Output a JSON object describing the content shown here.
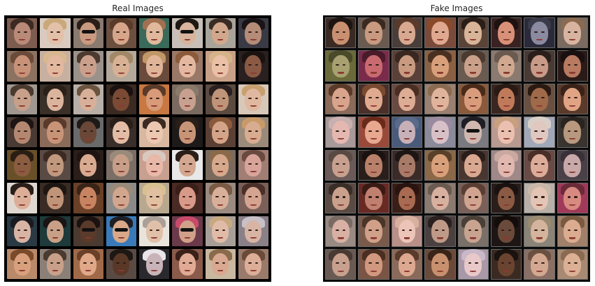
{
  "titles": {
    "real": "Real Images",
    "fake": "Fake Images"
  },
  "colors": {
    "background": "#ffffff",
    "grid_border_real": "#000000",
    "grid_border_fake": "#0a0a0a",
    "title_text": "#262626"
  },
  "real_tiles": [
    {
      "bg": "#7d5c50",
      "skin": "#b98a78",
      "hair": "#3a2a22"
    },
    {
      "bg": "#d9cbbf",
      "skin": "#e3c0a8",
      "hair": "#c9a87a"
    },
    {
      "bg": "#8a7a70",
      "skin": "#c99a80",
      "hair": "#2a1e18",
      "shades": true
    },
    {
      "bg": "#6b5040",
      "skin": "#d6a58a",
      "hair": "#5a3a28"
    },
    {
      "bg": "#3a6a5a",
      "skin": "#e0b89c",
      "hair": "#a07050"
    },
    {
      "bg": "#c8c0b8",
      "skin": "#d8b49c",
      "hair": "#1e1814",
      "shades": true
    },
    {
      "bg": "#a8a49a",
      "skin": "#d2a88c",
      "hair": "#3a2c24"
    },
    {
      "bg": "#3a3a44",
      "skin": "#b48c78",
      "hair": "#1a1416"
    },
    {
      "bg": "#8c7260",
      "skin": "#c89278",
      "hair": "#6a4a38"
    },
    {
      "bg": "#c8b0a0",
      "skin": "#e2b89e",
      "hair": "#d8b890"
    },
    {
      "bg": "#9a928a",
      "skin": "#caa08c",
      "hair": "#4a3a30"
    },
    {
      "bg": "#b4a89a",
      "skin": "#d8b094",
      "hair": "#a08868"
    },
    {
      "bg": "#6a4a3a",
      "skin": "#e0b498",
      "hair": "#c09868"
    },
    {
      "bg": "#9a7868",
      "skin": "#e4b8a0",
      "hair": "#8a5a3a"
    },
    {
      "bg": "#c8a088",
      "skin": "#eac0a6",
      "hair": "#d4b488"
    },
    {
      "bg": "#2a2020",
      "skin": "#8a5a44",
      "hair": "#1a1210"
    },
    {
      "bg": "#a09890",
      "skin": "#c8a08a",
      "hair": "#4a3a30"
    },
    {
      "bg": "#3a3028",
      "skin": "#dab49c",
      "hair": "#2a2018"
    },
    {
      "bg": "#b8b0a8",
      "skin": "#d8b09a",
      "hair": "#6a5440"
    },
    {
      "bg": "#3a2a22",
      "skin": "#7a4a34",
      "hair": "#1a1210"
    },
    {
      "bg": "#c87840",
      "skin": "#d89a78",
      "hair": "#5a3a28"
    },
    {
      "bg": "#7a6a60",
      "skin": "#c8a090",
      "hair": "#8a7a6a"
    },
    {
      "bg": "#5a4a40",
      "skin": "#c09478",
      "hair": "#2a2020"
    },
    {
      "bg": "#d8c8b8",
      "skin": "#e0b8a0",
      "hair": "#c8a070"
    },
    {
      "bg": "#4a3a34",
      "skin": "#b48870",
      "hair": "#1e1614"
    },
    {
      "bg": "#8a6a58",
      "skin": "#c89478",
      "hair": "#5a3a2a"
    },
    {
      "bg": "#6a6a6a",
      "skin": "#6a4838",
      "hair": "#1e1a18"
    },
    {
      "bg": "#3a2e2a",
      "skin": "#e2bca4",
      "hair": "#2a1e18"
    },
    {
      "bg": "#d8b8a0",
      "skin": "#ecc8b0",
      "hair": "#3a2a22"
    },
    {
      "bg": "#1e1a1a",
      "skin": "#c89478",
      "hair": "#2a1e18"
    },
    {
      "bg": "#5a4034",
      "skin": "#d4a488",
      "hair": "#8a5a3a"
    },
    {
      "bg": "#9a8a7a",
      "skin": "#d8ac90",
      "hair": "#c89a68"
    },
    {
      "bg": "#6a5028",
      "skin": "#8a5c40",
      "hair": "#2a1e14"
    },
    {
      "bg": "#5a4a44",
      "skin": "#c0987e",
      "hair": "#3a2a22"
    },
    {
      "bg": "#2a1e1a",
      "skin": "#d8aa90",
      "hair": "#1e1412"
    },
    {
      "bg": "#7a6e66",
      "skin": "#c89e88",
      "hair": "#9a8a7a"
    },
    {
      "bg": "#c8a090",
      "skin": "#e8b8a8",
      "hair": "#d8c8c0"
    },
    {
      "bg": "#e8e8e8",
      "skin": "#d4a890",
      "hair": "#2a1e18"
    },
    {
      "bg": "#7a6a5e",
      "skin": "#d6a88c",
      "hair": "#8a6a48"
    },
    {
      "bg": "#a07e74",
      "skin": "#d8a49a",
      "hair": "#6a4a3e"
    },
    {
      "bg": "#e0d8d0",
      "skin": "#dcae98",
      "hair": "#2a1e18"
    },
    {
      "bg": "#3a2c24",
      "skin": "#c09478",
      "hair": "#1e1612"
    },
    {
      "bg": "#6a4028",
      "skin": "#c88460",
      "hair": "#3a2418"
    },
    {
      "bg": "#8a8a8a",
      "skin": "#d2a68e",
      "hair": "#9a8a7a"
    },
    {
      "bg": "#b8a890",
      "skin": "#e0c0a0",
      "hair": "#d8c090"
    },
    {
      "bg": "#4a2a24",
      "skin": "#d89a88",
      "hair": "#3a1e18"
    },
    {
      "bg": "#9a8a80",
      "skin": "#d8b09a",
      "hair": "#7a5a44"
    },
    {
      "bg": "#7a6058",
      "skin": "#d4a490",
      "hair": "#4a3028"
    },
    {
      "bg": "#2a3a44",
      "skin": "#d8b4a4",
      "hair": "#1a1a20"
    },
    {
      "bg": "#1e3a3a",
      "skin": "#c8a088",
      "hair": "#1a1412"
    },
    {
      "bg": "#4a3a30",
      "skin": "#5a3a2a",
      "hair": "#1a1210",
      "shades": true
    },
    {
      "bg": "#3a7ab8",
      "skin": "#d8a888",
      "hair": "#1e1e24",
      "shades": true
    },
    {
      "bg": "#e8e4dc",
      "skin": "#e0c0a8",
      "hair": "#aaa098"
    },
    {
      "bg": "#6a3a4a",
      "skin": "#d0a088",
      "hair": "#c84a6a",
      "shades": true
    },
    {
      "bg": "#a89e98",
      "skin": "#e0bca8",
      "hair": "#c8a880"
    },
    {
      "bg": "#8a8088",
      "skin": "#d8b4a4",
      "hair": "#c8c0c8"
    },
    {
      "bg": "#b88a6a",
      "skin": "#d8a07c",
      "hair": "#7a4a2a"
    },
    {
      "bg": "#8a8078",
      "skin": "#c8a08a",
      "hair": "#4a3a30"
    },
    {
      "bg": "#a06a48",
      "skin": "#e0a888",
      "hair": "#6a4028"
    },
    {
      "bg": "#5a4a44",
      "skin": "#5a3828",
      "hair": "#1e1814"
    },
    {
      "bg": "#2a2a2e",
      "skin": "#c8b4b8",
      "hair": "#e8e4e8"
    },
    {
      "bg": "#8a5a4a",
      "skin": "#e0aa94",
      "hair": "#3a2018"
    },
    {
      "bg": "#c8b8a0",
      "skin": "#d8a890",
      "hair": "#8a6a4a"
    },
    {
      "bg": "#9a7a6a",
      "skin": "#dcae98",
      "hair": "#6a4a38"
    }
  ],
  "fake_tiles": [
    {
      "bg": "#3a2a24",
      "skin": "#c89070",
      "hair": "#1e1412"
    },
    {
      "bg": "#6a5a50",
      "skin": "#c89a80",
      "hair": "#3a2a22"
    },
    {
      "bg": "#4a3e3a",
      "skin": "#d8a890",
      "hair": "#5a3a2a"
    },
    {
      "bg": "#7a4a3a",
      "skin": "#e0a88e",
      "hair": "#8a4a2a"
    },
    {
      "bg": "#5a4438",
      "skin": "#d8b498",
      "hair": "#2a1e18"
    },
    {
      "bg": "#3a2222",
      "skin": "#d89078",
      "hair": "#1e1210"
    },
    {
      "bg": "#2a2a3a",
      "skin": "#8a8aa0",
      "hair": "#3a3a4a"
    },
    {
      "bg": "#7a6a60",
      "skin": "#d8b4a0",
      "hair": "#8a6a50"
    },
    {
      "bg": "#6a6a3a",
      "skin": "#a8a070",
      "hair": "#4a4a2a"
    },
    {
      "bg": "#7a2a4a",
      "skin": "#c86a70",
      "hair": "#4a1a2a"
    },
    {
      "bg": "#5a4038",
      "skin": "#c89a80",
      "hair": "#3a2820"
    },
    {
      "bg": "#8a6044",
      "skin": "#d8a07a",
      "hair": "#4a3020"
    },
    {
      "bg": "#6a5a50",
      "skin": "#caa08a",
      "hair": "#4a3a30"
    },
    {
      "bg": "#8a7a70",
      "skin": "#d0a890",
      "hair": "#6a5a50"
    },
    {
      "bg": "#4a3a34",
      "skin": "#c89a88",
      "hair": "#2a1e1a"
    },
    {
      "bg": "#2a1a18",
      "skin": "#b87a60",
      "hair": "#1a1010"
    },
    {
      "bg": "#8a6a5a",
      "skin": "#d8a48c",
      "hair": "#5a3a28"
    },
    {
      "bg": "#4a3028",
      "skin": "#e0aa90",
      "hair": "#7a4a30"
    },
    {
      "bg": "#6a4a40",
      "skin": "#dcac94",
      "hair": "#4a2e24"
    },
    {
      "bg": "#9a8070",
      "skin": "#e0b49c",
      "hair": "#8a6a50"
    },
    {
      "bg": "#8a5a3a",
      "skin": "#d89c7c",
      "hair": "#4a2a18"
    },
    {
      "bg": "#3a2620",
      "skin": "#c07a5a",
      "hair": "#2a1a14"
    },
    {
      "bg": "#6a5040",
      "skin": "#a06a4a",
      "hair": "#2a1a12"
    },
    {
      "bg": "#5a3a2a",
      "skin": "#e0a484",
      "hair": "#3a2218"
    },
    {
      "bg": "#a89a9a",
      "skin": "#e4b8b0",
      "hair": "#c8b0b0"
    },
    {
      "bg": "#9a4a3a",
      "skin": "#e8a890",
      "hair": "#6a2a1a"
    },
    {
      "bg": "#4a5a7a",
      "skin": "#c8b0b8",
      "hair": "#5a6a8a"
    },
    {
      "bg": "#8a8a9a",
      "skin": "#d8c0c8",
      "hair": "#9a8aa0"
    },
    {
      "bg": "#7a7a80",
      "skin": "#d0b8b0",
      "hair": "#1e1e24",
      "shades": true
    },
    {
      "bg": "#b89a90",
      "skin": "#ecc0b0",
      "hair": "#c8a080"
    },
    {
      "bg": "#a0a8b8",
      "skin": "#e0c8c0",
      "hair": "#d8d0c8"
    },
    {
      "bg": "#3a3430",
      "skin": "#b8987e",
      "hair": "#2a2420"
    },
    {
      "bg": "#6a5a58",
      "skin": "#c8a090",
      "hair": "#5a4a44"
    },
    {
      "bg": "#2a1e1a",
      "skin": "#b8806a",
      "hair": "#1a1210"
    },
    {
      "bg": "#3a2a28",
      "skin": "#a87a68",
      "hair": "#1e1614"
    },
    {
      "bg": "#8a6848",
      "skin": "#d8a07a",
      "hair": "#5a4028"
    },
    {
      "bg": "#4a3630",
      "skin": "#d8a890",
      "hair": "#2a1e1a"
    },
    {
      "bg": "#a08888",
      "skin": "#e0b8b0",
      "hair": "#c8a8a0"
    },
    {
      "bg": "#6a4a44",
      "skin": "#dcac98",
      "hair": "#4a2e28"
    },
    {
      "bg": "#4a4048",
      "skin": "#c8a8a8",
      "hair": "#3a3038"
    },
    {
      "bg": "#5a4a44",
      "skin": "#c8a08c",
      "hair": "#3a2e28"
    },
    {
      "bg": "#6a2a24",
      "skin": "#c08070",
      "hair": "#3a1a14"
    },
    {
      "bg": "#3a1e18",
      "skin": "#a86a50",
      "hair": "#2a1410"
    },
    {
      "bg": "#8a7a70",
      "skin": "#d8b0a0",
      "hair": "#6a5a50"
    },
    {
      "bg": "#7a6058",
      "skin": "#d0a490",
      "hair": "#5a3e34"
    },
    {
      "bg": "#2a1e1a",
      "skin": "#8a5a44",
      "hair": "#1a1210"
    },
    {
      "bg": "#b8b0a8",
      "skin": "#e4c4b4",
      "hair": "#c8b8a8"
    },
    {
      "bg": "#a03a5a",
      "skin": "#d88a80",
      "hair": "#6a2a3a"
    },
    {
      "bg": "#9a8a84",
      "skin": "#d8b0a4",
      "hair": "#7a6a64"
    },
    {
      "bg": "#7a5a4a",
      "skin": "#d0a088",
      "hair": "#4a3428"
    },
    {
      "bg": "#b89088",
      "skin": "#ecc4b8",
      "hair": "#d8b0a0"
    },
    {
      "bg": "#4a4040",
      "skin": "#c09a88",
      "hair": "#2a2020"
    },
    {
      "bg": "#7a7068",
      "skin": "#c8a490",
      "hair": "#4a4038"
    },
    {
      "bg": "#1e1614",
      "skin": "#6a4a3a",
      "hair": "#120c0a"
    },
    {
      "bg": "#8a8478",
      "skin": "#d4b49c",
      "hair": "#9a8a70"
    },
    {
      "bg": "#a0806a",
      "skin": "#dcac90",
      "hair": "#7a5a40"
    },
    {
      "bg": "#6a5a54",
      "skin": "#c8a08e",
      "hair": "#4a3a34"
    },
    {
      "bg": "#7a5444",
      "skin": "#d0987e",
      "hair": "#4a2e22"
    },
    {
      "bg": "#8a6a5a",
      "skin": "#dca890",
      "hair": "#5a3a2a"
    },
    {
      "bg": "#6a4a3a",
      "skin": "#c8906e",
      "hair": "#3a2418"
    },
    {
      "bg": "#a898a8",
      "skin": "#e8c8c8",
      "hair": "#c8b8c8"
    },
    {
      "bg": "#3a2a22",
      "skin": "#6a4430",
      "hair": "#1a120e"
    },
    {
      "bg": "#8a7064",
      "skin": "#d4a890",
      "hair": "#6a5040"
    },
    {
      "bg": "#a88a74",
      "skin": "#dcb094",
      "hair": "#8a6a50"
    }
  ]
}
